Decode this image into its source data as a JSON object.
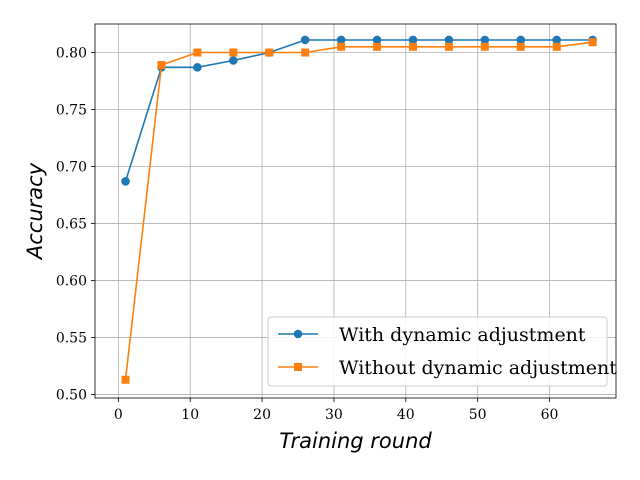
{
  "chart_data": {
    "type": "line",
    "title": "",
    "xlabel": "Training round",
    "ylabel": "Accuracy",
    "xlim": [
      -3.25,
      69.25
    ],
    "ylim": [
      0.497,
      0.825
    ],
    "xticks": [
      "0",
      "10",
      "20",
      "30",
      "40",
      "50",
      "60"
    ],
    "yticks": [
      "0.50",
      "0.55",
      "0.60",
      "0.65",
      "0.70",
      "0.75",
      "0.80"
    ],
    "xtick_values": [
      0,
      10,
      20,
      30,
      40,
      50,
      60
    ],
    "ytick_values": [
      0.5,
      0.55,
      0.6,
      0.65,
      0.7,
      0.75,
      0.8
    ],
    "grid": true,
    "legend_position": "lower-right",
    "x": [
      1,
      6,
      11,
      16,
      21,
      26,
      31,
      36,
      41,
      46,
      51,
      56,
      61,
      66
    ],
    "series": [
      {
        "name": "With dynamic adjustment",
        "color": "#1f77b4",
        "marker": "circle",
        "values": [
          0.687,
          0.787,
          0.787,
          0.793,
          0.8,
          0.811,
          0.811,
          0.811,
          0.811,
          0.811,
          0.811,
          0.811,
          0.811,
          0.811
        ]
      },
      {
        "name": "Without dynamic adjustment",
        "color": "#ff7f0e",
        "marker": "square",
        "values": [
          0.513,
          0.789,
          0.8,
          0.8,
          0.8,
          0.8,
          0.805,
          0.805,
          0.805,
          0.805,
          0.805,
          0.805,
          0.805,
          0.809
        ]
      }
    ]
  }
}
